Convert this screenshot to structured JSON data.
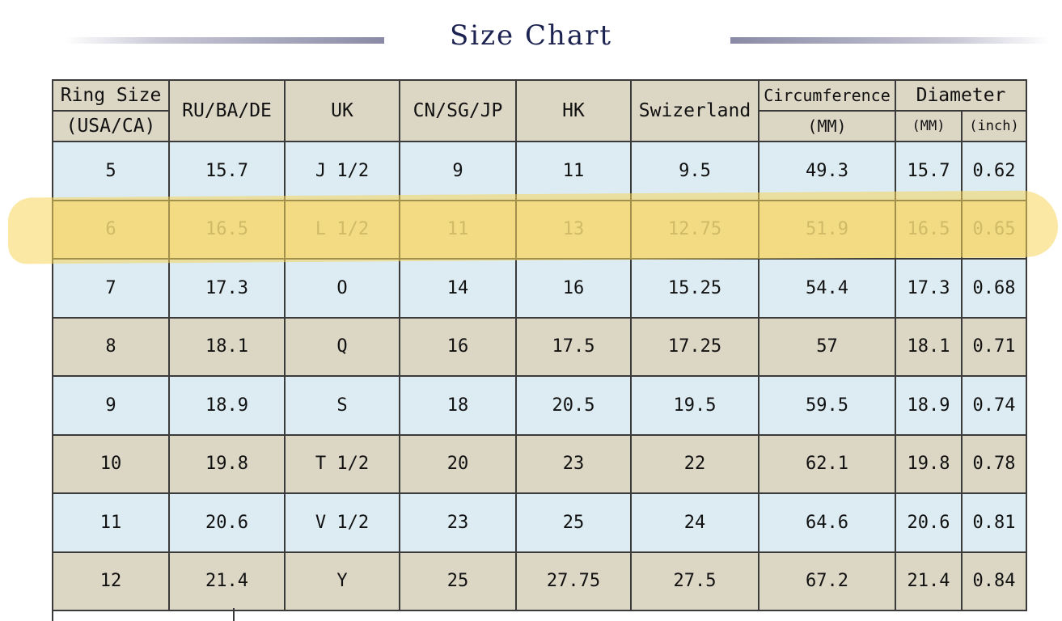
{
  "title": "Size Chart",
  "headers": {
    "ring_size_line1": "Ring Size",
    "ring_size_line2": "(USA/CA)",
    "ru": "RU/BA/DE",
    "uk": "UK",
    "cn": "CN/SG/JP",
    "hk": "HK",
    "swiss": "Swizerland",
    "circumference_line1": "Circumference",
    "circumference_line2": "(MM)",
    "diameter": "Diameter",
    "diameter_mm": "(MM)",
    "diameter_inch": "(inch)"
  },
  "rows": [
    [
      "5",
      "15.7",
      "J 1/2",
      "9",
      "11",
      "9.5",
      "49.3",
      "15.7",
      "0.62"
    ],
    [
      "6",
      "16.5",
      "L 1/2",
      "11",
      "13",
      "12.75",
      "51.9",
      "16.5",
      "0.65"
    ],
    [
      "7",
      "17.3",
      "O",
      "14",
      "16",
      "15.25",
      "54.4",
      "17.3",
      "0.68"
    ],
    [
      "8",
      "18.1",
      "Q",
      "16",
      "17.5",
      "17.25",
      "57",
      "18.1",
      "0.71"
    ],
    [
      "9",
      "18.9",
      "S",
      "18",
      "20.5",
      "19.5",
      "59.5",
      "18.9",
      "0.74"
    ],
    [
      "10",
      "19.8",
      "T 1/2",
      "20",
      "23",
      "22",
      "62.1",
      "19.8",
      "0.78"
    ],
    [
      "11",
      "20.6",
      "V 1/2",
      "23",
      "25",
      "24",
      "64.6",
      "20.6",
      "0.81"
    ],
    [
      "12",
      "21.4",
      "Y",
      "25",
      "27.75",
      "27.5",
      "67.2",
      "21.4",
      "0.84"
    ]
  ],
  "highlighted_row_index": 1,
  "colors": {
    "header_bg": "#dcd6c5",
    "row_blue": "#dcecf2",
    "row_tan": "#dcd6c5",
    "highlight": "#f6d65a",
    "title": "#1c2350"
  }
}
